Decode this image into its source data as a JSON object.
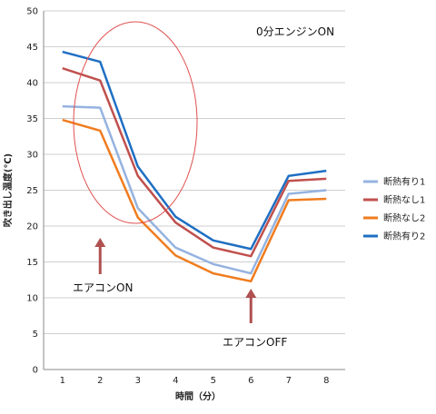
{
  "chart_data": {
    "type": "line",
    "title": "",
    "xlabel": "時間（分）",
    "ylabel": "吹き出し温度(℃)",
    "x": [
      1,
      2,
      3,
      4,
      5,
      6,
      7,
      8
    ],
    "xticks": [
      "1",
      "2",
      "3",
      "4",
      "5",
      "6",
      "7",
      "8"
    ],
    "ylim": [
      0,
      50
    ],
    "yticks": [
      "0",
      "5",
      "10",
      "15",
      "20",
      "25",
      "30",
      "35",
      "40",
      "45",
      "50"
    ],
    "grid": true,
    "legend_position": "right",
    "series": [
      {
        "name": "断熱有り1",
        "color": "#95b3e0",
        "values": [
          36.7,
          36.5,
          22.5,
          17.0,
          14.7,
          13.4,
          24.5,
          25.0
        ]
      },
      {
        "name": "断熱なし1",
        "color": "#c0504d",
        "values": [
          42.0,
          40.3,
          27.0,
          20.5,
          17.0,
          15.8,
          26.3,
          26.6
        ]
      },
      {
        "name": "断熱なし2",
        "color": "#f07c1e",
        "values": [
          34.8,
          33.3,
          21.2,
          15.9,
          13.4,
          12.3,
          23.6,
          23.8
        ]
      },
      {
        "name": "断熱有り2",
        "color": "#1f6fc3",
        "values": [
          44.3,
          42.9,
          28.3,
          21.3,
          18.0,
          16.8,
          27.0,
          27.7
        ]
      }
    ],
    "annotations": [
      {
        "id": "start",
        "text": "0分エンジンON"
      },
      {
        "id": "ac-on",
        "text": "エアコンON",
        "x": 2
      },
      {
        "id": "ac-off",
        "text": "エアコンOFF",
        "x": 6
      }
    ],
    "highlight_color": "#e05050",
    "arrow_color": "#b05050"
  }
}
